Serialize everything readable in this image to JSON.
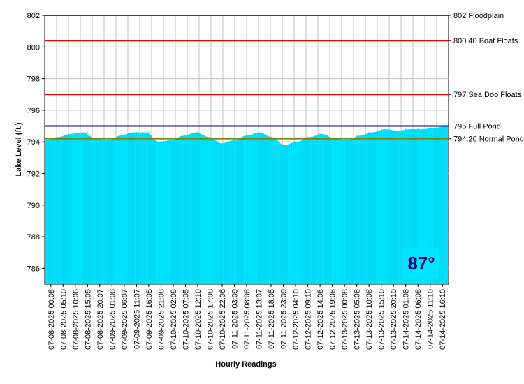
{
  "chart_data": {
    "type": "area",
    "title": "",
    "ylabel": "Lake Level (ft.)",
    "xlabel": "Hourly Readings",
    "ylim": [
      785,
      802
    ],
    "yticks": [
      786,
      788,
      790,
      792,
      794,
      796,
      798,
      800,
      802
    ],
    "grid": true,
    "categories": [
      "07-08-2025 00:08",
      "07-08-2025 05:10",
      "07-08-2025 10:06",
      "07-08-2025 15:05",
      "07-08-2025 20:07",
      "07-09-2025 01:08",
      "07-09-2025 06:07",
      "07-09-2025 11:07",
      "07-09-2025 16:05",
      "07-09-2025 21:08",
      "07-10-2025 02:08",
      "07-10-2025 07:05",
      "07-10-2025 12:10",
      "07-10-2025 17:08",
      "07-10-2025 22:06",
      "07-11-2025 03:09",
      "07-11-2025 08:08",
      "07-11-2025 13:07",
      "07-11-2025 18:05",
      "07-11-2025 23:09",
      "07-12-2025 04:10",
      "07-12-2025 09:10",
      "07-12-2025 14:08",
      "07-12-2025 19:08",
      "07-13-2025 00:08",
      "07-13-2025 05:08",
      "07-13-2025 10:08",
      "07-13-2025 15:10",
      "07-13-2025 20:10",
      "07-14-2025 01:08",
      "07-14-2025 06:08",
      "07-14-2025 11:10",
      "07-14-2025 16:10"
    ],
    "series": [
      {
        "values": [
          794.1,
          794.3,
          794.5,
          794.6,
          794.2,
          794.1,
          794.4,
          794.6,
          794.6,
          794.0,
          794.1,
          794.4,
          794.6,
          794.3,
          793.9,
          794.1,
          794.4,
          794.6,
          794.3,
          793.8,
          794.0,
          794.3,
          794.5,
          794.2,
          794.1,
          794.4,
          794.6,
          794.8,
          794.7,
          794.8,
          794.8,
          794.9,
          795.0
        ],
        "color": "#00e5ff"
      }
    ],
    "reference_lines": [
      {
        "value": 802,
        "label": "802 Floodplain",
        "color": "#e00000"
      },
      {
        "value": 800.4,
        "label": "800.40 Boat Floats",
        "color": "#e00000"
      },
      {
        "value": 797,
        "label": "797 Sea Doo Floats",
        "color": "#e00000"
      },
      {
        "value": 795,
        "label": "795 Full Pond",
        "color": "#000080"
      },
      {
        "value": 794.2,
        "label": "794.20 Normal Pond",
        "color": "#808000"
      }
    ]
  },
  "temperature": "87°"
}
